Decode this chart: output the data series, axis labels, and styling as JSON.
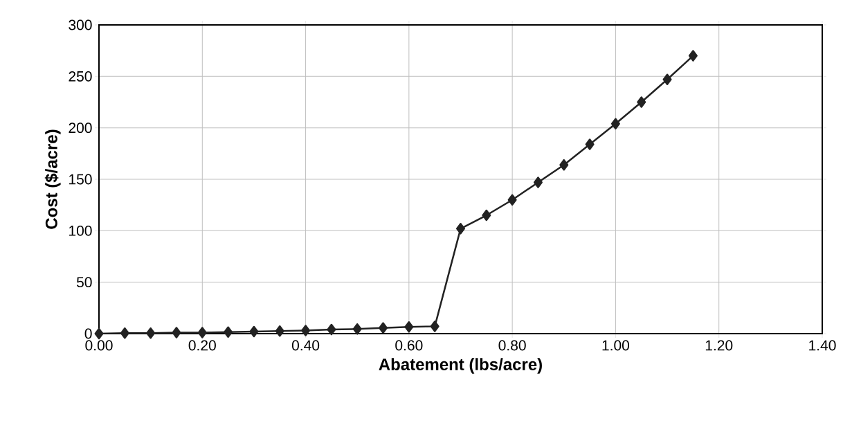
{
  "chart_data": {
    "type": "line",
    "xlabel": "Abatement (lbs/acre)",
    "ylabel": "Cost ($/acre)",
    "x": [
      0.0,
      0.05,
      0.1,
      0.15,
      0.2,
      0.25,
      0.3,
      0.35,
      0.4,
      0.45,
      0.5,
      0.55,
      0.6,
      0.65,
      0.7,
      0.75,
      0.8,
      0.85,
      0.9,
      0.95,
      1.0,
      1.05,
      1.1,
      1.15
    ],
    "values": [
      0,
      0.5,
      0.5,
      1,
      1,
      1.5,
      2,
      2.5,
      3,
      4,
      4.5,
      5.5,
      6.5,
      7,
      102,
      115,
      130,
      147,
      164,
      184,
      204,
      225,
      247,
      270
    ],
    "color": "#222222",
    "marker": "diamond",
    "line_style": "solid",
    "grid": true,
    "xlim": [
      0,
      1.4
    ],
    "ylim": [
      0,
      300
    ],
    "xticks": [
      {
        "value": 0,
        "label": "0.00"
      },
      {
        "value": 0.2,
        "label": "0.20"
      },
      {
        "value": 0.4,
        "label": "0.40"
      },
      {
        "value": 0.6,
        "label": "0.60"
      },
      {
        "value": 0.8,
        "label": "0.80"
      },
      {
        "value": 1.0,
        "label": "1.00"
      },
      {
        "value": 1.2,
        "label": "1.20"
      },
      {
        "value": 1.4,
        "label": "1.40"
      }
    ],
    "yticks": [
      0,
      50,
      100,
      150,
      200,
      250,
      300
    ]
  }
}
